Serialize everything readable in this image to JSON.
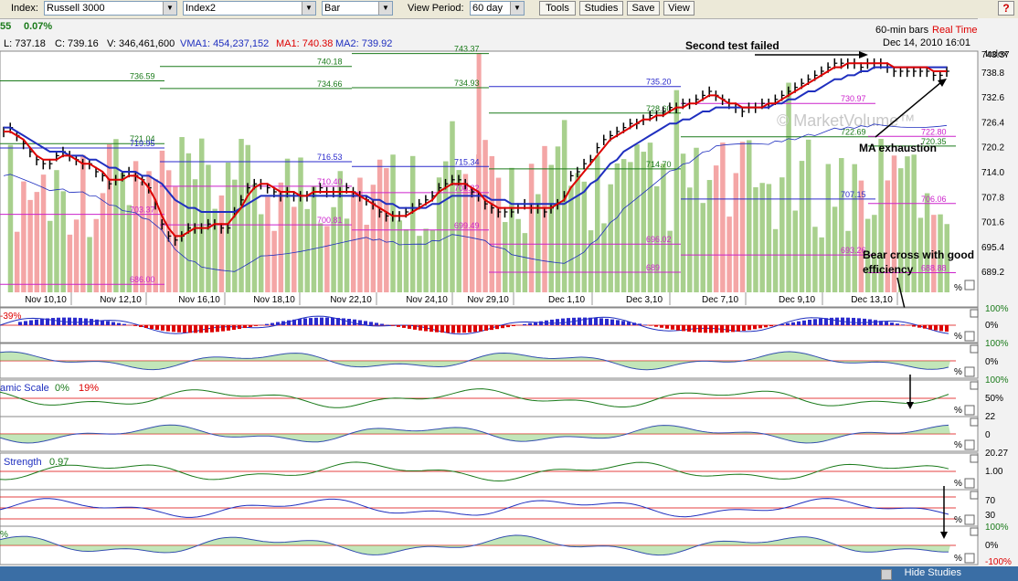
{
  "toolbar": {
    "index_label": "Index:",
    "index_value": "Russell 3000",
    "index2_value": "Index2",
    "chart_type_value": "Bar",
    "view_period_label": "View Period:",
    "view_period_value": "60 day",
    "buttons": [
      "Tools",
      "Studies",
      "Save",
      "View"
    ],
    "help_label": "?"
  },
  "info": {
    "change": "55",
    "change_pct": "0.07%",
    "low": "L: 737.18",
    "close": "C: 739.16",
    "volume": "V: 346,461,600",
    "vma1": "VMA1: 454,237,152",
    "ma1": "MA1: 740.38",
    "ma2": "MA2: 739.92",
    "bars_label": "60-min bars",
    "realtime": "Real Time",
    "datetime": "Dec 14, 2010 16:01",
    "axis_label": "Index"
  },
  "colors": {
    "up_volume": "#a8d08d",
    "down_volume": "#f4a6a6",
    "price_bar": "#000000",
    "ma1": "#dd0000",
    "ma2": "#1f2fbf",
    "level_green": "#1a7a1a",
    "level_blue": "#2a2acc",
    "level_magenta": "#cc22cc",
    "watermark": "#c8c8c8"
  },
  "chart_data": {
    "type": "bar",
    "title": "",
    "x_tick_labels": [
      "Nov 10,10",
      "Nov 12,10",
      "Nov 16,10",
      "Nov 18,10",
      "Nov 22,10",
      "Nov 24,10",
      "Nov 29,10",
      "Dec 1,10",
      "Dec 3,10",
      "Dec 7,10",
      "Dec 9,10",
      "Dec 13,10"
    ],
    "y_ticks": [
      "743.37",
      "738.8",
      "732.6",
      "726.4",
      "720.2",
      "714.0",
      "707.8",
      "701.6",
      "695.4",
      "689.2"
    ],
    "ylim": [
      684,
      744
    ],
    "price": {
      "x": [
        0,
        3,
        6,
        9,
        12,
        15,
        18,
        21,
        24,
        27,
        30,
        33,
        36,
        39,
        42,
        45,
        48,
        51,
        54,
        57,
        60,
        63,
        66,
        69,
        72,
        75,
        78,
        81,
        84,
        87,
        90,
        93,
        96,
        99,
        102,
        105,
        108,
        111,
        114,
        117,
        120,
        123,
        126,
        129,
        132,
        135,
        138,
        141,
        144,
        147,
        150,
        153,
        156,
        159,
        162,
        165,
        168,
        171,
        174,
        177,
        180,
        183,
        186,
        189,
        192,
        195,
        198,
        201,
        204,
        207,
        210,
        213,
        216,
        219,
        222,
        225,
        228,
        231,
        234,
        237,
        240,
        243,
        246,
        249,
        252,
        255,
        258,
        261,
        264,
        267,
        270,
        273,
        276,
        279,
        282,
        285,
        288,
        291,
        294,
        297,
        300,
        303,
        306,
        309,
        312,
        315,
        318,
        321,
        324,
        327,
        330,
        333,
        336,
        339,
        342,
        345,
        348,
        351,
        354,
        357,
        360,
        363,
        366,
        369,
        372,
        375,
        378,
        381,
        384,
        387,
        390,
        393,
        396,
        399,
        402,
        405,
        408,
        411,
        414,
        417,
        420,
        423,
        426,
        429
      ],
      "close": [
        724,
        725,
        723,
        721,
        719,
        717,
        716,
        716,
        718,
        719,
        718,
        717,
        716,
        716,
        714,
        713,
        711,
        712,
        713,
        714,
        713,
        712,
        710,
        706,
        701,
        698,
        697,
        698,
        700,
        700,
        700,
        701,
        701,
        700,
        700,
        704,
        707,
        710,
        711,
        711,
        710,
        709,
        708,
        709,
        708,
        708,
        708,
        709,
        710,
        709,
        709,
        709,
        710,
        709,
        708,
        707,
        706,
        704,
        703,
        703,
        703,
        704,
        705,
        706,
        707,
        708,
        710,
        711,
        712,
        712,
        711,
        709,
        708,
        706,
        705,
        704,
        704,
        704,
        705,
        706,
        705,
        705,
        704,
        705,
        706,
        708,
        713,
        714,
        716,
        717,
        720,
        722,
        723,
        724,
        725,
        726,
        726,
        727,
        728,
        728,
        729,
        730,
        730,
        731,
        731,
        732,
        733,
        734,
        733,
        732,
        731,
        730,
        729,
        730,
        730,
        731,
        731,
        732,
        733,
        734,
        735,
        736,
        737,
        738,
        739,
        740,
        741,
        741,
        741,
        741,
        740,
        741,
        741,
        741,
        740,
        739,
        739,
        739,
        739,
        739,
        739,
        738,
        738,
        739
      ]
    },
    "ma1": {
      "name": "MA1",
      "values": [
        724,
        724,
        723,
        722,
        720,
        718,
        717,
        717,
        717,
        718,
        718,
        717,
        716,
        716,
        715,
        714,
        712,
        712,
        712,
        713,
        713,
        712,
        710,
        707,
        703,
        700,
        698,
        698,
        699,
        700,
        700,
        700,
        701,
        701,
        701,
        703,
        705,
        708,
        710,
        711,
        711,
        710,
        709,
        709,
        709,
        708,
        708,
        709,
        709,
        709,
        709,
        709,
        709,
        709,
        708,
        707,
        706,
        705,
        704,
        703,
        703,
        703,
        704,
        705,
        706,
        707,
        709,
        710,
        711,
        711,
        711,
        710,
        709,
        707,
        706,
        705,
        705,
        705,
        705,
        705,
        705,
        705,
        705,
        705,
        706,
        707,
        710,
        712,
        714,
        716,
        718,
        720,
        722,
        723,
        724,
        725,
        726,
        727,
        727,
        728,
        728,
        729,
        730,
        730,
        731,
        731,
        732,
        733,
        733,
        732,
        731,
        731,
        730,
        730,
        730,
        730,
        731,
        731,
        732,
        733,
        734,
        735,
        736,
        737,
        738,
        739,
        740,
        740,
        741,
        741,
        741,
        741,
        741,
        741,
        741,
        740,
        740,
        740,
        740,
        740,
        740,
        739,
        739,
        739
      ]
    },
    "ma2": {
      "name": "MA2",
      "values": [
        725,
        725,
        724,
        723,
        722,
        721,
        720,
        719,
        719,
        719,
        718,
        718,
        718,
        717,
        717,
        716,
        715,
        715,
        714,
        714,
        714,
        713,
        713,
        712,
        711,
        709,
        707,
        706,
        705,
        705,
        704,
        704,
        704,
        704,
        704,
        704,
        705,
        706,
        707,
        708,
        708,
        708,
        708,
        708,
        708,
        708,
        708,
        708,
        708,
        708,
        708,
        708,
        708,
        708,
        708,
        708,
        707,
        707,
        706,
        706,
        705,
        705,
        705,
        705,
        705,
        706,
        706,
        707,
        708,
        708,
        708,
        708,
        708,
        708,
        707,
        707,
        707,
        706,
        706,
        706,
        706,
        706,
        706,
        706,
        706,
        706,
        707,
        708,
        709,
        711,
        712,
        714,
        716,
        717,
        719,
        720,
        721,
        722,
        723,
        724,
        725,
        726,
        726,
        727,
        727,
        728,
        729,
        729,
        730,
        730,
        730,
        730,
        730,
        730,
        730,
        730,
        730,
        731,
        731,
        732,
        732,
        733,
        734,
        734,
        735,
        736,
        737,
        737,
        738,
        738,
        739,
        739,
        740,
        740,
        740,
        740,
        740,
        740,
        740,
        740,
        740,
        740,
        740,
        740
      ]
    },
    "levels": [
      {
        "label": "736.59",
        "value": 736.6,
        "color": "green"
      },
      {
        "label": "734.66",
        "value": 734.7,
        "color": "green"
      },
      {
        "label": "734.93",
        "value": 734.9,
        "color": "green"
      },
      {
        "label": "728.60",
        "value": 728.6,
        "color": "green"
      },
      {
        "label": "722.69",
        "value": 722.7,
        "color": "green"
      },
      {
        "label": "720.35",
        "value": 720.4,
        "color": "green"
      },
      {
        "label": "721.04",
        "value": 721.0,
        "color": "green"
      },
      {
        "label": "716.53",
        "value": 716.5,
        "color": "blue"
      },
      {
        "label": "715.34",
        "value": 715.3,
        "color": "blue"
      },
      {
        "label": "714.70",
        "value": 714.7,
        "color": "green"
      },
      {
        "label": "707.15",
        "value": 707.2,
        "color": "blue"
      },
      {
        "label": "706.06",
        "value": 706.1,
        "color": "magenta"
      },
      {
        "label": "703.37",
        "value": 703.4,
        "color": "magenta"
      },
      {
        "label": "700.81",
        "value": 700.8,
        "color": "magenta"
      },
      {
        "label": "699.49",
        "value": 699.5,
        "color": "magenta"
      },
      {
        "label": "696.02",
        "value": 696.0,
        "color": "magenta"
      },
      {
        "label": "693.26",
        "value": 693.3,
        "color": "magenta"
      },
      {
        "label": "688.88",
        "value": 688.9,
        "color": "magenta"
      },
      {
        "label": "686.00",
        "value": 686.0,
        "color": "magenta"
      },
      {
        "label": "740.18",
        "value": 740.2,
        "color": "green"
      },
      {
        "label": "743.37",
        "value": 743.4,
        "color": "green"
      },
      {
        "label": "735.20",
        "value": 735.2,
        "color": "blue"
      },
      {
        "label": "730.97",
        "value": 731.0,
        "color": "magenta"
      },
      {
        "label": "722.80",
        "value": 722.8,
        "color": "magenta"
      },
      {
        "label": "719.95",
        "value": 719.9,
        "color": "blue"
      },
      {
        "label": "710.40",
        "value": 710.4,
        "color": "magenta"
      },
      {
        "label": "708.82",
        "value": 708.8,
        "color": "magenta"
      },
      {
        "label": "689",
        "value": 689.0,
        "color": "magenta"
      }
    ]
  },
  "annotations": {
    "second_test": "Second test failed",
    "ma_exhaustion": "MA exhaustion",
    "bear_cross_1": "Bear cross with good",
    "bear_cross_2": "efficiency",
    "watermark": "© MarketVolume™"
  },
  "studies": {
    "p1": {
      "label": "-39%",
      "axis_top": "100%",
      "axis_mid": "0%"
    },
    "p2": {
      "axis_top": "100%",
      "axis_mid": "0%"
    },
    "p3": {
      "label": "amic Scale",
      "v1": "0%",
      "v2": "19%",
      "axis_top": "100%",
      "axis_a": "50%",
      "axis_b": "22"
    },
    "p4": {
      "axis_mid": "0",
      "axis_bot": "20.27"
    },
    "p5": {
      "label": "Strength",
      "v": "0.97",
      "axis_a": "1.00"
    },
    "p6": {
      "axis_a": "70",
      "axis_b": "30"
    },
    "p7": {
      "label": "%",
      "axis_top": "100%",
      "axis_mid": "0%",
      "axis_bot": "-100%"
    }
  },
  "status": {
    "hide_studies": "Hide Studies"
  }
}
